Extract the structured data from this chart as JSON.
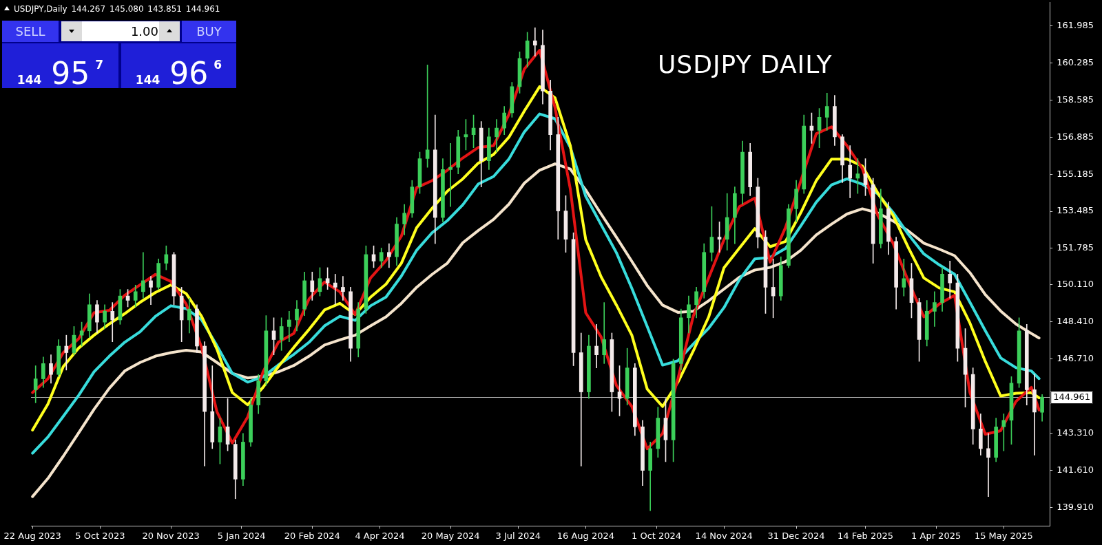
{
  "chart_data": {
    "type": "candlestick",
    "title": "USDJPY DAILY",
    "subtitle": "USDJPY,Daily 144.267 145.080 143.851 144.961",
    "annotations": [
      "SELL",
      "1.00",
      "BUY",
      "144 95$^{7}$",
      "144 96$^{6}$"
    ],
    "x": [
      "2023-08-22",
      "2023-09-01",
      "2023-09-11",
      "2023-09-21",
      "2023-10-01",
      "2023-10-11",
      "2023-10-21",
      "2023-10-31",
      "2023-11-10",
      "2023-11-20",
      "2023-11-30",
      "2023-12-10",
      "2023-12-20",
      "2023-12-30",
      "2024-01-09",
      "2024-01-19",
      "2024-01-29",
      "2024-02-08",
      "2024-02-18",
      "2024-02-28",
      "2024-03-09",
      "2024-03-19",
      "2024-03-29",
      "2024-04-08",
      "2024-04-18",
      "2024-04-28",
      "2024-05-08",
      "2024-05-18",
      "2024-05-28",
      "2024-06-07",
      "2024-06-17",
      "2024-06-27",
      "2024-07-07",
      "2024-07-17",
      "2024-07-27",
      "2024-08-06",
      "2024-08-16",
      "2024-08-26",
      "2024-09-05",
      "2024-09-15",
      "2024-09-25",
      "2024-10-05",
      "2024-10-15",
      "2024-10-25",
      "2024-11-04",
      "2024-11-14",
      "2024-11-24",
      "2024-12-04",
      "2024-12-14",
      "2024-12-24",
      "2025-01-03",
      "2025-01-13",
      "2025-01-23",
      "2025-02-02",
      "2025-02-12",
      "2025-02-22",
      "2025-03-04",
      "2025-03-14",
      "2025-03-24",
      "2025-04-03",
      "2025-04-13",
      "2025-04-23",
      "2025-05-03",
      "2025-05-13",
      "2025-05-23",
      "2025-06-02",
      "2025-06-07"
    ],
    "xlim": [
      "2023-08-21",
      "2025-06-14"
    ],
    "xticks": [
      {
        "value": "2023-08-22",
        "label": "22 Aug 2023"
      },
      {
        "value": "2023-10-05",
        "label": "5 Oct 2023"
      },
      {
        "value": "2023-11-20",
        "label": "20 Nov 2023"
      },
      {
        "value": "2024-01-05",
        "label": "5 Jan 2024"
      },
      {
        "value": "2024-02-20",
        "label": "20 Feb 2024"
      },
      {
        "value": "2024-04-04",
        "label": "4 Apr 2024"
      },
      {
        "value": "2024-05-20",
        "label": "20 May 2024"
      },
      {
        "value": "2024-07-03",
        "label": "3 Jul 2024"
      },
      {
        "value": "2024-08-16",
        "label": "16 Aug 2024"
      },
      {
        "value": "2024-10-01",
        "label": "1 Oct 2024"
      },
      {
        "value": "2024-11-14",
        "label": "14 Nov 2024"
      },
      {
        "value": "2024-12-31",
        "label": "31 Dec 2024"
      },
      {
        "value": "2025-02-14",
        "label": "14 Feb 2025"
      },
      {
        "value": "2025-04-01",
        "label": "1 Apr 2025"
      },
      {
        "value": "2025-05-15",
        "label": "15 May 2025"
      }
    ],
    "ylim": [
      139.05,
      163.08
    ],
    "yticks": [
      161.985,
      160.285,
      158.585,
      156.885,
      155.185,
      153.485,
      151.785,
      {
        "value": 150.11,
        "label": "150.110"
      },
      {
        "value": 148.41,
        "label": "148.410"
      },
      {
        "value": 146.71,
        "label": "146.710"
      },
      {
        "value": 143.31,
        "label": "143.310"
      },
      {
        "value": 141.61,
        "label": "141.610"
      },
      {
        "value": 139.91,
        "label": "139.910"
      }
    ],
    "ref_lines": [
      {
        "axis": "y",
        "value": 144.961,
        "label": "144.961",
        "color": "#b4b4b4"
      }
    ],
    "series": [
      {
        "type": "candlestick",
        "x": [
          "2023-08-24",
          "2023-08-29",
          "2023-09-03",
          "2023-09-08",
          "2023-09-13",
          "2023-09-18",
          "2023-09-23",
          "2023-09-28",
          "2023-10-03",
          "2023-10-08",
          "2023-10-13",
          "2023-10-18",
          "2023-10-23",
          "2023-10-28",
          "2023-11-02",
          "2023-11-07",
          "2023-11-12",
          "2023-11-17",
          "2023-11-22",
          "2023-11-27",
          "2023-12-02",
          "2023-12-07",
          "2023-12-12",
          "2023-12-17",
          "2023-12-22",
          "2023-12-27",
          "2024-01-01",
          "2024-01-06",
          "2024-01-11",
          "2024-01-16",
          "2024-01-21",
          "2024-01-26",
          "2024-01-31",
          "2024-02-05",
          "2024-02-10",
          "2024-02-15",
          "2024-02-20",
          "2024-02-25",
          "2024-03-01",
          "2024-03-06",
          "2024-03-11",
          "2024-03-16",
          "2024-03-21",
          "2024-03-26",
          "2024-03-31",
          "2024-04-05",
          "2024-04-10",
          "2024-04-15",
          "2024-04-20",
          "2024-04-25",
          "2024-04-30",
          "2024-05-05",
          "2024-05-10",
          "2024-05-15",
          "2024-05-20",
          "2024-05-25",
          "2024-05-30",
          "2024-06-04",
          "2024-06-09",
          "2024-06-14",
          "2024-06-19",
          "2024-06-24",
          "2024-06-29",
          "2024-07-04",
          "2024-07-09",
          "2024-07-14",
          "2024-07-19",
          "2024-07-24",
          "2024-07-29",
          "2024-08-03",
          "2024-08-08",
          "2024-08-13",
          "2024-08-18",
          "2024-08-23",
          "2024-08-28",
          "2024-09-02",
          "2024-09-07",
          "2024-09-12",
          "2024-09-17",
          "2024-09-22",
          "2024-09-27",
          "2024-10-02",
          "2024-10-07",
          "2024-10-12",
          "2024-10-17",
          "2024-10-22",
          "2024-10-27",
          "2024-11-01",
          "2024-11-06",
          "2024-11-11",
          "2024-11-16",
          "2024-11-21",
          "2024-11-26",
          "2024-12-01",
          "2024-12-06",
          "2024-12-11",
          "2024-12-16",
          "2024-12-21",
          "2024-12-26",
          "2024-12-31",
          "2025-01-05",
          "2025-01-10",
          "2025-01-15",
          "2025-01-20",
          "2025-01-25",
          "2025-01-30",
          "2025-02-04",
          "2025-02-09",
          "2025-02-14",
          "2025-02-19",
          "2025-02-24",
          "2025-03-01",
          "2025-03-06",
          "2025-03-11",
          "2025-03-16",
          "2025-03-21",
          "2025-03-26",
          "2025-03-31",
          "2025-04-05",
          "2025-04-10",
          "2025-04-15",
          "2025-04-20",
          "2025-04-25",
          "2025-04-30",
          "2025-05-05",
          "2025-05-10",
          "2025-05-15",
          "2025-05-20",
          "2025-05-25",
          "2025-05-30",
          "2025-06-04",
          "2025-06-09"
        ],
        "ohlc": [
          [
            145.3,
            146.4,
            144.7,
            145.8
          ],
          [
            145.8,
            146.8,
            145.4,
            146.5
          ],
          [
            146.5,
            146.9,
            145.6,
            146.0
          ],
          [
            146.0,
            147.6,
            145.9,
            147.3
          ],
          [
            147.3,
            147.8,
            146.2,
            147.0
          ],
          [
            147.0,
            148.2,
            146.9,
            147.8
          ],
          [
            147.8,
            148.4,
            147.3,
            148.0
          ],
          [
            148.0,
            149.7,
            147.7,
            149.2
          ],
          [
            149.2,
            149.4,
            147.9,
            148.4
          ],
          [
            148.4,
            149.2,
            148.1,
            148.9
          ],
          [
            148.9,
            149.3,
            147.5,
            148.5
          ],
          [
            148.5,
            149.9,
            148.3,
            149.6
          ],
          [
            149.6,
            149.9,
            149.1,
            149.4
          ],
          [
            149.4,
            150.1,
            149.1,
            149.8
          ],
          [
            149.8,
            151.6,
            149.5,
            150.3
          ],
          [
            150.3,
            150.5,
            149.2,
            150.0
          ],
          [
            150.0,
            151.3,
            149.9,
            151.1
          ],
          [
            151.1,
            151.9,
            150.8,
            151.5
          ],
          [
            151.5,
            151.6,
            149.2,
            149.6
          ],
          [
            149.6,
            150.0,
            147.5,
            148.5
          ],
          [
            148.5,
            149.5,
            147.9,
            149.0
          ],
          [
            149.0,
            149.2,
            147.0,
            147.3
          ],
          [
            147.3,
            147.5,
            141.8,
            144.3
          ],
          [
            144.3,
            146.4,
            142.6,
            142.9
          ],
          [
            142.9,
            144.0,
            141.9,
            143.6
          ],
          [
            143.6,
            144.9,
            142.5,
            142.8
          ],
          [
            142.8,
            143.0,
            140.3,
            141.2
          ],
          [
            141.2,
            143.3,
            140.9,
            142.9
          ],
          [
            142.9,
            144.9,
            142.7,
            144.6
          ],
          [
            144.6,
            146.0,
            144.2,
            145.7
          ],
          [
            145.7,
            148.7,
            145.5,
            148.0
          ],
          [
            148.0,
            148.6,
            146.9,
            147.6
          ],
          [
            147.6,
            148.6,
            147.1,
            148.2
          ],
          [
            148.2,
            148.9,
            147.5,
            148.5
          ],
          [
            148.5,
            149.4,
            148.0,
            149.0
          ],
          [
            149.0,
            150.7,
            148.7,
            150.3
          ],
          [
            150.3,
            150.7,
            149.4,
            149.8
          ],
          [
            149.8,
            150.9,
            149.6,
            150.4
          ],
          [
            150.4,
            150.9,
            149.9,
            150.2
          ],
          [
            150.2,
            150.6,
            149.2,
            150.0
          ],
          [
            150.0,
            150.5,
            149.4,
            149.8
          ],
          [
            149.8,
            150.0,
            146.6,
            147.2
          ],
          [
            147.2,
            149.3,
            146.8,
            149.0
          ],
          [
            149.0,
            151.9,
            148.8,
            151.5
          ],
          [
            151.5,
            151.9,
            150.9,
            151.2
          ],
          [
            151.2,
            151.8,
            150.9,
            151.6
          ],
          [
            151.6,
            152.0,
            150.9,
            151.4
          ],
          [
            151.4,
            153.2,
            151.0,
            152.9
          ],
          [
            152.9,
            153.8,
            152.4,
            153.4
          ],
          [
            153.4,
            154.9,
            153.2,
            154.6
          ],
          [
            154.6,
            156.2,
            154.3,
            155.9
          ],
          [
            155.9,
            160.2,
            155.5,
            156.3
          ],
          [
            156.3,
            157.9,
            152.0,
            153.2
          ],
          [
            153.2,
            155.9,
            153.0,
            155.4
          ],
          [
            155.4,
            156.6,
            153.7,
            155.5
          ],
          [
            155.5,
            157.2,
            155.2,
            156.9
          ],
          [
            156.9,
            157.7,
            156.3,
            157.0
          ],
          [
            157.0,
            157.9,
            156.4,
            157.3
          ],
          [
            157.3,
            157.6,
            154.6,
            155.8
          ],
          [
            155.8,
            157.3,
            155.4,
            156.9
          ],
          [
            156.9,
            157.7,
            156.2,
            157.3
          ],
          [
            157.3,
            158.3,
            157.0,
            158.0
          ],
          [
            158.0,
            159.4,
            157.8,
            159.2
          ],
          [
            159.2,
            160.8,
            158.9,
            160.5
          ],
          [
            160.5,
            161.7,
            160.1,
            161.3
          ],
          [
            161.3,
            161.9,
            160.6,
            161.1
          ],
          [
            161.1,
            161.8,
            158.4,
            159.0
          ],
          [
            159.0,
            159.5,
            156.3,
            157.0
          ],
          [
            157.0,
            157.8,
            152.2,
            153.5
          ],
          [
            153.5,
            154.2,
            151.6,
            152.2
          ],
          [
            152.2,
            152.5,
            146.4,
            147.0
          ],
          [
            147.0,
            147.9,
            141.8,
            145.2
          ],
          [
            145.2,
            147.8,
            144.9,
            147.3
          ],
          [
            147.3,
            148.3,
            146.3,
            146.9
          ],
          [
            146.9,
            149.3,
            146.5,
            147.6
          ],
          [
            147.6,
            147.9,
            144.3,
            145.2
          ],
          [
            145.2,
            146.4,
            144.1,
            144.9
          ],
          [
            144.9,
            147.2,
            144.6,
            146.3
          ],
          [
            146.3,
            146.5,
            143.2,
            143.6
          ],
          [
            143.6,
            143.9,
            140.9,
            141.6
          ],
          [
            141.6,
            142.9,
            139.75,
            142.6
          ],
          [
            142.6,
            144.5,
            142.2,
            144.0
          ],
          [
            144.0,
            144.9,
            142.0,
            143.0
          ],
          [
            143.0,
            146.7,
            142.0,
            146.5
          ],
          [
            146.5,
            149.0,
            146.2,
            148.6
          ],
          [
            148.6,
            149.6,
            147.9,
            149.2
          ],
          [
            149.2,
            150.0,
            148.6,
            149.8
          ],
          [
            149.8,
            152.0,
            149.5,
            151.6
          ],
          [
            151.6,
            153.7,
            151.2,
            152.3
          ],
          [
            152.3,
            153.0,
            151.6,
            152.2
          ],
          [
            152.2,
            154.3,
            151.7,
            153.2
          ],
          [
            153.2,
            154.6,
            152.0,
            154.3
          ],
          [
            154.3,
            156.7,
            153.8,
            156.2
          ],
          [
            156.2,
            156.6,
            154.2,
            154.6
          ],
          [
            154.6,
            155.0,
            151.8,
            152.3
          ],
          [
            152.3,
            152.6,
            148.8,
            150.0
          ],
          [
            150.0,
            151.3,
            148.6,
            149.6
          ],
          [
            149.6,
            151.4,
            149.4,
            151.0
          ],
          [
            151.0,
            153.8,
            150.9,
            153.6
          ],
          [
            153.6,
            154.9,
            153.0,
            154.5
          ],
          [
            154.5,
            157.9,
            154.3,
            157.4
          ],
          [
            157.4,
            158.0,
            156.6,
            157.2
          ],
          [
            157.2,
            158.2,
            156.4,
            157.8
          ],
          [
            157.8,
            158.9,
            157.2,
            158.3
          ],
          [
            158.3,
            158.8,
            156.5,
            156.9
          ],
          [
            156.9,
            157.0,
            154.8,
            155.6
          ],
          [
            155.6,
            156.5,
            154.1,
            155.0
          ],
          [
            155.0,
            155.9,
            154.3,
            155.2
          ],
          [
            155.2,
            155.9,
            154.2,
            154.7
          ],
          [
            154.7,
            155.0,
            151.1,
            152.0
          ],
          [
            152.0,
            154.5,
            151.8,
            153.6
          ],
          [
            153.6,
            153.9,
            151.5,
            152.1
          ],
          [
            152.1,
            152.3,
            149.0,
            150.0
          ],
          [
            150.0,
            151.3,
            149.6,
            150.4
          ],
          [
            150.4,
            151.1,
            148.6,
            149.3
          ],
          [
            149.3,
            149.5,
            146.6,
            147.6
          ],
          [
            147.6,
            149.4,
            147.3,
            148.9
          ],
          [
            148.9,
            149.8,
            148.2,
            149.3
          ],
          [
            149.3,
            150.9,
            148.9,
            150.6
          ],
          [
            150.6,
            151.2,
            149.5,
            150.2
          ],
          [
            150.2,
            150.6,
            146.6,
            147.2
          ],
          [
            147.2,
            148.1,
            144.5,
            146.0
          ],
          [
            146.0,
            146.3,
            142.8,
            143.5
          ],
          [
            143.5,
            144.2,
            142.3,
            142.6
          ],
          [
            142.6,
            143.3,
            140.4,
            142.2
          ],
          [
            142.2,
            144.0,
            142.0,
            143.6
          ],
          [
            143.6,
            144.2,
            142.5,
            143.9
          ],
          [
            143.9,
            145.9,
            142.8,
            145.6
          ],
          [
            145.6,
            148.6,
            145.4,
            148.0
          ],
          [
            148.0,
            148.3,
            144.6,
            145.3
          ],
          [
            145.3,
            146.0,
            142.3,
            144.27
          ],
          [
            144.267,
            145.08,
            143.851,
            144.961
          ]
        ],
        "colors": [
          "#3ccf5a",
          "#3ccf5a",
          "#f3eaea",
          "#3ccf5a",
          "#f3eaea",
          "#3ccf5a",
          "#3ccf5a",
          "#3ccf5a",
          "#f3eaea",
          "#3ccf5a",
          "#f3eaea",
          "#3ccf5a",
          "#f3eaea",
          "#3ccf5a",
          "#3ccf5a",
          "#f3eaea",
          "#3ccf5a",
          "#3ccf5a",
          "#f3eaea",
          "#f3eaea",
          "#3ccf5a",
          "#f3eaea",
          "#f3eaea",
          "#f3eaea",
          "#3ccf5a",
          "#f3eaea",
          "#f3eaea",
          "#3ccf5a",
          "#3ccf5a",
          "#3ccf5a",
          "#3ccf5a",
          "#f3eaea",
          "#3ccf5a",
          "#3ccf5a",
          "#3ccf5a",
          "#3ccf5a",
          "#f3eaea",
          "#3ccf5a",
          "#f3eaea",
          "#f3eaea",
          "#f3eaea",
          "#f3eaea",
          "#3ccf5a",
          "#3ccf5a",
          "#f3eaea",
          "#3ccf5a",
          "#f3eaea",
          "#3ccf5a",
          "#3ccf5a",
          "#3ccf5a",
          "#3ccf5a",
          "#3ccf5a",
          "#f3eaea",
          "#3ccf5a",
          "#3ccf5a",
          "#3ccf5a",
          "#3ccf5a",
          "#3ccf5a",
          "#f3eaea",
          "#3ccf5a",
          "#3ccf5a",
          "#3ccf5a",
          "#3ccf5a",
          "#3ccf5a",
          "#3ccf5a",
          "#f3eaea",
          "#f3eaea",
          "#f3eaea",
          "#f3eaea",
          "#f3eaea",
          "#f3eaea",
          "#f3eaea",
          "#3ccf5a",
          "#f3eaea",
          "#3ccf5a",
          "#f3eaea",
          "#f3eaea",
          "#3ccf5a",
          "#f3eaea",
          "#f3eaea",
          "#3ccf5a",
          "#3ccf5a",
          "#f3eaea",
          "#3ccf5a",
          "#3ccf5a",
          "#3ccf5a",
          "#3ccf5a",
          "#3ccf5a",
          "#3ccf5a",
          "#f3eaea",
          "#3ccf5a",
          "#3ccf5a",
          "#3ccf5a",
          "#f3eaea",
          "#f3eaea",
          "#f3eaea",
          "#f3eaea",
          "#3ccf5a",
          "#3ccf5a",
          "#3ccf5a",
          "#3ccf5a",
          "#f3eaea",
          "#3ccf5a",
          "#3ccf5a",
          "#f3eaea",
          "#f3eaea",
          "#f3eaea",
          "#3ccf5a",
          "#f3eaea",
          "#f3eaea",
          "#3ccf5a",
          "#f3eaea",
          "#f3eaea",
          "#3ccf5a",
          "#f3eaea",
          "#f3eaea",
          "#3ccf5a",
          "#3ccf5a",
          "#3ccf5a",
          "#f3eaea",
          "#f3eaea",
          "#f3eaea",
          "#f3eaea",
          "#f3eaea",
          "#f3eaea",
          "#3ccf5a",
          "#3ccf5a",
          "#3ccf5a",
          "#3ccf5a",
          "#f3eaea",
          "#f3eaea",
          "#3ccf5a"
        ]
      },
      {
        "type": "line",
        "color": "#e31414",
        "values": [
          145.17,
          145.8,
          147.0,
          147.64,
          148.83,
          148.94,
          149.63,
          150.11,
          150.59,
          150.27,
          149.23,
          147.24,
          144.29,
          142.86,
          144.05,
          146.12,
          147.48,
          147.88,
          149.47,
          150.24,
          149.79,
          148.75,
          150.43,
          151.22,
          152.34,
          154.57,
          154.89,
          155.37,
          155.93,
          156.41,
          156.49,
          157.92,
          160.0,
          160.87,
          158.24,
          154.49,
          148.83,
          147.72,
          145.49,
          144.53,
          142.59,
          143.29,
          145.81,
          148.68,
          150.43,
          152.18,
          153.7,
          154.09,
          151.15,
          152.74,
          154.89,
          157.04,
          157.36,
          156.49,
          155.45,
          153.3,
          152.02,
          150.27,
          148.64,
          149.23,
          149.63,
          145.17,
          143.26,
          143.42,
          144.77,
          145.41,
          144.37
        ]
      },
      {
        "type": "line",
        "color": "#ffff1e",
        "values": [
          143.45,
          144.64,
          146.36,
          147.21,
          147.8,
          148.32,
          148.79,
          149.31,
          149.76,
          150.11,
          149.71,
          148.67,
          147.16,
          145.17,
          144.61,
          145.41,
          146.36,
          147.24,
          148.07,
          148.96,
          149.26,
          148.75,
          149.55,
          150.14,
          151.1,
          152.74,
          153.62,
          154.41,
          154.97,
          155.69,
          156.09,
          156.88,
          158.08,
          159.2,
          158.69,
          156.49,
          152.18,
          150.48,
          149.18,
          147.8,
          145.33,
          144.53,
          145.65,
          147.08,
          148.64,
          150.9,
          151.8,
          152.69,
          151.86,
          152.1,
          153.43,
          154.89,
          155.88,
          155.88,
          155.56,
          154.33,
          153.3,
          151.81,
          150.43,
          149.97,
          149.79,
          148.36,
          146.6,
          145.01,
          145.14,
          145.17,
          144.93
        ]
      },
      {
        "type": "line",
        "color": "#38dcdc",
        "values": [
          142.39,
          143.13,
          144.08,
          145.04,
          146.12,
          146.84,
          147.48,
          147.96,
          148.67,
          149.15,
          149.02,
          148.51,
          147.32,
          146.05,
          145.65,
          145.89,
          146.44,
          146.92,
          147.48,
          148.23,
          148.67,
          148.48,
          149.15,
          149.55,
          150.51,
          151.7,
          152.5,
          153.06,
          153.78,
          154.73,
          155.08,
          155.88,
          157.12,
          157.95,
          157.73,
          156.41,
          154.17,
          152.87,
          151.58,
          149.95,
          148.2,
          146.43,
          146.63,
          147.4,
          148.12,
          149.07,
          150.35,
          151.3,
          151.37,
          151.78,
          152.82,
          153.9,
          154.7,
          154.97,
          154.73,
          154.29,
          153.43,
          152.42,
          151.53,
          151.03,
          150.6,
          149.31,
          148.01,
          146.76,
          146.31,
          146.16,
          145.81
        ]
      },
      {
        "type": "line",
        "color": "#f5e4cc",
        "values": [
          140.4,
          141.23,
          142.25,
          143.32,
          144.4,
          145.37,
          146.16,
          146.55,
          146.84,
          147.0,
          147.11,
          147.03,
          146.55,
          146.05,
          145.84,
          145.92,
          146.12,
          146.41,
          146.84,
          147.35,
          147.59,
          147.8,
          148.23,
          148.64,
          149.26,
          150.0,
          150.59,
          151.11,
          152.04,
          152.6,
          153.11,
          153.81,
          154.77,
          155.37,
          155.66,
          155.42,
          154.46,
          153.36,
          152.29,
          151.19,
          150.08,
          149.18,
          148.85,
          148.9,
          149.38,
          149.92,
          150.46,
          150.79,
          150.91,
          151.18,
          151.7,
          152.4,
          152.9,
          153.36,
          153.6,
          153.41,
          153.04,
          152.58,
          152.02,
          151.75,
          151.45,
          150.67,
          149.66,
          148.91,
          148.31,
          147.88,
          147.67
        ]
      }
    ]
  }
}
